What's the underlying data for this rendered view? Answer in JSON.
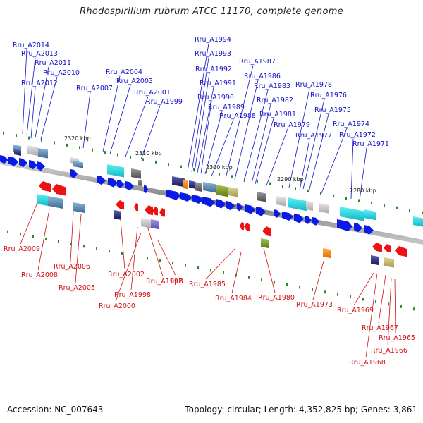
{
  "title": "Rhodospirillum rubrum ATCC 11170, complete genome",
  "footer": {
    "accession": "Accession: NC_007643",
    "summary": "Topology: circular; Length: 4,352,825 bp; Genes: 3,861"
  },
  "colors": {
    "forward_label": "#1010c8",
    "reverse_label": "#d01010",
    "forward_gene": "#0a1be8",
    "reverse_gene": "#ee1111",
    "tick": "#2a8a2a",
    "backbone": "#888888"
  },
  "scale_labels": [
    "2320 kbp",
    "2310 kbp",
    "2300 kbp",
    "2290 kbp",
    "2280 kbp"
  ],
  "forward_labels": [
    "Rru_A2014",
    "Rru_A2013",
    "Rru_A2011",
    "Rru_A2012",
    "Rru_A2010",
    "Rru_A2007",
    "Rru_A2004",
    "Rru_A2003",
    "Rru_A2001",
    "Rru_A1999",
    "Rru_A1994",
    "Rru_A1993",
    "Rru_A1992",
    "Rru_A1991",
    "Rru_A1990",
    "Rru_A1989",
    "Rru_A1988",
    "Rru_A1987",
    "Rru_A1986",
    "Rru_A1983",
    "Rru_A1982",
    "Rru_A1981",
    "Rru_A1979",
    "Rru_A1978",
    "Rru_A1976",
    "Rru_A1977",
    "Rru_A1975",
    "Rru_A1974",
    "Rru_A1972",
    "Rru_A1971"
  ],
  "reverse_labels": [
    "Rru_A2009",
    "Rru_A2008",
    "Rru_A2006",
    "Rru_A2005",
    "Rru_A2002",
    "Rru_A2000",
    "Rru_A1997",
    "Rru_A1998",
    "lipB",
    "Rru_A1985",
    "Rru_A1984",
    "Rru_A1980",
    "Rru_A1973",
    "Rru_A1969",
    "Rru_A1967",
    "Rru_A1965",
    "Rru_A1966",
    "Rru_A1968"
  ]
}
